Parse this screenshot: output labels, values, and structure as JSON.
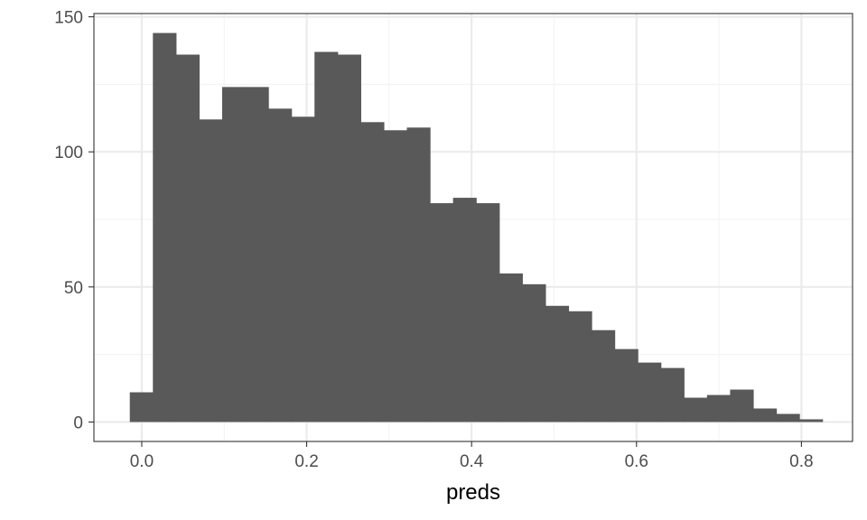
{
  "chart_data": {
    "type": "bar",
    "subtype": "histogram",
    "title": "",
    "xlabel": "preds",
    "ylabel": "",
    "xlim": [
      -0.058,
      0.862
    ],
    "ylim": [
      -7.2,
      151.2
    ],
    "x_ticks": [
      0.0,
      0.2,
      0.4,
      0.6,
      0.8
    ],
    "x_tick_labels": [
      "0.0",
      "0.2",
      "0.4",
      "0.6",
      "0.8"
    ],
    "y_ticks": [
      0,
      50,
      100,
      150
    ],
    "y_tick_labels": [
      "0",
      "50",
      "100",
      "150"
    ],
    "grid": true,
    "legend": "none",
    "bin_width": 0.028,
    "bin_start": -0.0145,
    "values": [
      11,
      144,
      136,
      112,
      124,
      124,
      116,
      113,
      137,
      136,
      111,
      108,
      109,
      81,
      83,
      81,
      55,
      51,
      43,
      41,
      34,
      27,
      22,
      20,
      9,
      10,
      12,
      5,
      3,
      1
    ],
    "colors": {
      "bar": "#595959",
      "grid_major": "#ebebeb",
      "grid_minor": "#f3f3f3",
      "panel_border": "#333333",
      "tick_text": "#4d4d4d",
      "axis_title": "#000000"
    }
  }
}
